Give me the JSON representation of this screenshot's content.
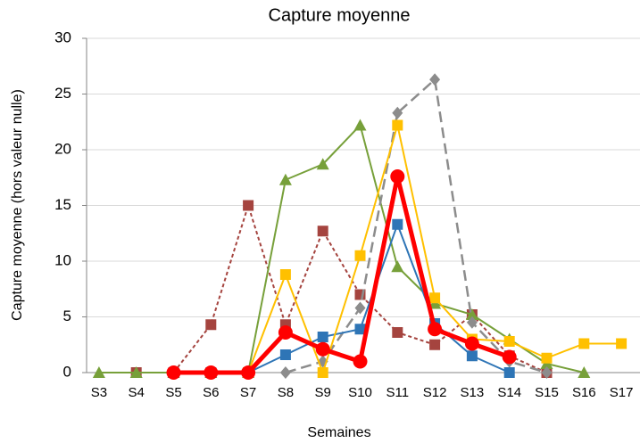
{
  "chart_data": {
    "type": "line",
    "title": "Capture moyenne",
    "x_label": "Semaines",
    "y_label": "Capture moyenne (hors valeur nulle)",
    "categories": [
      "S3",
      "S4",
      "S5",
      "S6",
      "S7",
      "S8",
      "S9",
      "S10",
      "S11",
      "S12",
      "S13",
      "S14",
      "S15",
      "S16",
      "S17"
    ],
    "ylim": [
      0,
      30
    ],
    "yticks": [
      0,
      5,
      10,
      15,
      20,
      25,
      30
    ],
    "grid": true,
    "series": [
      {
        "color": "#a5443f",
        "marker": "square",
        "dash": "short",
        "width": 2,
        "values": [
          null,
          0,
          0,
          4.3,
          15,
          4.3,
          12.7,
          7,
          3.6,
          2.5,
          5.2,
          1.5,
          0,
          null,
          null
        ]
      },
      {
        "color": "#77a03a",
        "marker": "triangle",
        "dash": "solid",
        "width": 2,
        "values": [
          0,
          0,
          0,
          0,
          0,
          17.3,
          18.7,
          22.2,
          9.5,
          6.2,
          5.2,
          3,
          0.8,
          0,
          null
        ]
      },
      {
        "color": "#8c8c8c",
        "marker": "diamond",
        "dash": "long",
        "width": 2.5,
        "values": [
          null,
          null,
          null,
          null,
          null,
          0,
          1,
          5.8,
          23.3,
          26.3,
          4.5,
          1,
          0,
          null,
          null
        ]
      },
      {
        "color": "#2e75b6",
        "marker": "square",
        "dash": "solid",
        "width": 2,
        "values": [
          null,
          null,
          0,
          0,
          0,
          1.6,
          3.2,
          3.9,
          13.3,
          4.4,
          1.5,
          0,
          null,
          null,
          null
        ]
      },
      {
        "color": "#ffc000",
        "marker": "square",
        "dash": "solid",
        "width": 2,
        "values": [
          null,
          null,
          null,
          null,
          0,
          8.8,
          0,
          10.5,
          22.2,
          6.7,
          3,
          2.8,
          1.3,
          2.6,
          2.6
        ]
      },
      {
        "color": "#ff0000",
        "marker": "circle",
        "dash": "solid",
        "width": 5,
        "values": [
          null,
          null,
          0,
          0,
          0,
          3.6,
          2.1,
          1,
          17.6,
          3.9,
          2.6,
          1.4,
          null,
          null,
          null
        ]
      }
    ]
  }
}
